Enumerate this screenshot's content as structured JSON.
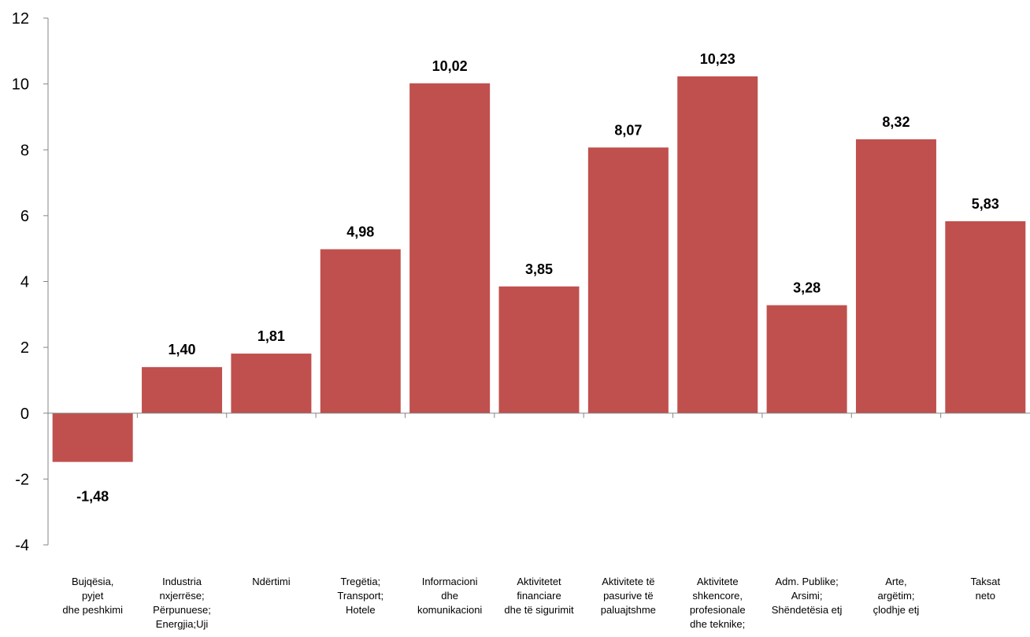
{
  "chart_data": {
    "type": "bar",
    "categories": [
      [
        "Bujqësia,",
        "pyjet",
        "dhe peshkimi"
      ],
      [
        "Industria",
        "nxjerrëse;",
        "Përpunuese;",
        "Energjia;Uji"
      ],
      [
        "Ndërtimi"
      ],
      [
        "Tregëtia;",
        "Transport;",
        "Hotele"
      ],
      [
        "Informacioni",
        "dhe",
        "komunikacioni"
      ],
      [
        "Aktivitetet",
        "financiare",
        "dhe të sigurimit"
      ],
      [
        "Aktivitete të",
        "pasurive të",
        "paluajtshme"
      ],
      [
        "Aktivitete",
        "shkencore,",
        "profesionale",
        "dhe teknike;"
      ],
      [
        "Adm. Publike;",
        "Arsimi;",
        "Shëndetësia etj"
      ],
      [
        "Arte,",
        "argëtim;",
        "çlodhje etj"
      ],
      [
        "Taksat",
        "neto"
      ]
    ],
    "values": [
      -1.48,
      1.4,
      1.81,
      4.98,
      10.02,
      3.85,
      8.07,
      10.23,
      3.28,
      8.32,
      5.83
    ],
    "value_labels": [
      "-1,48",
      "1,40",
      "1,81",
      "4,98",
      "10,02",
      "3,85",
      "8,07",
      "10,23",
      "3,28",
      "8,32",
      "5,83"
    ],
    "ylim": [
      -4,
      12
    ],
    "yticks": [
      -4,
      -2,
      0,
      2,
      4,
      6,
      8,
      10,
      12
    ],
    "title": "",
    "xlabel": "",
    "ylabel": "",
    "grid": false,
    "bar_color": "#c0504d",
    "axis_color": "#868686"
  }
}
